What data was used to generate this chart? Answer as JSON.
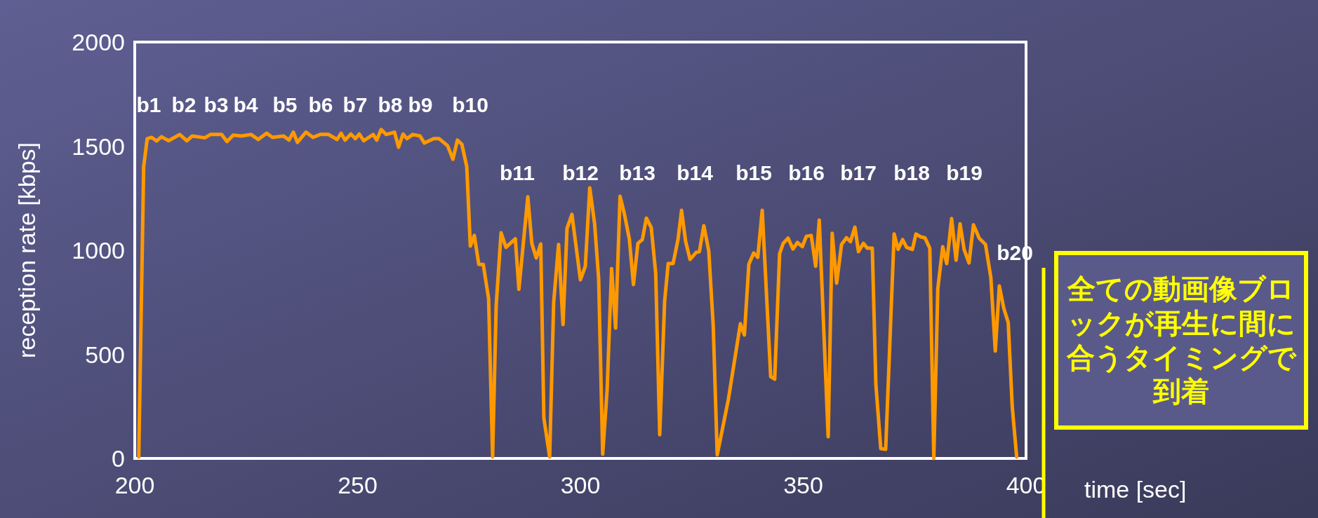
{
  "chart_data": {
    "type": "line",
    "xlabel": "time [sec]",
    "ylabel": "reception rate [kbps]",
    "xlim": [
      200,
      400
    ],
    "ylim": [
      0,
      2000
    ],
    "xticks": [
      200,
      250,
      300,
      350,
      400
    ],
    "yticks": [
      0,
      500,
      1000,
      1500,
      2000
    ],
    "grid": false,
    "series": [
      {
        "color": "#ff9900",
        "x": [
          200.9,
          202.0,
          202.8,
          203.8,
          204.9,
          206.0,
          207.6,
          210.1,
          211.7,
          212.9,
          215.7,
          217.0,
          219.5,
          220.7,
          222.1,
          223.9,
          226.1,
          227.7,
          229.6,
          230.9,
          233.4,
          234.6,
          235.6,
          236.5,
          238.4,
          240.0,
          241.6,
          243.5,
          245.4,
          246.3,
          247.2,
          248.5,
          249.5,
          250.4,
          251.4,
          253.5,
          254.3,
          255.3,
          256.4,
          258.3,
          259.2,
          260.2,
          261.1,
          262.4,
          264.0,
          265.0,
          267.1,
          268.3,
          270.2,
          271.4,
          272.4,
          273.4,
          274.5,
          275.3,
          276.2,
          277.2,
          278.2,
          279.4,
          280.3,
          281.1,
          282.2,
          283.3,
          285.4,
          286.2,
          288.2,
          289.1,
          290.1,
          291.1,
          291.8,
          293.1,
          294.0,
          295.1,
          296.1,
          297.0,
          298.1,
          300.0,
          301.1,
          302.1,
          303.2,
          304.1,
          305.0,
          306.0,
          307.0,
          307.9,
          308.9,
          309.9,
          311.0,
          311.9,
          312.9,
          313.9,
          314.8,
          315.9,
          316.9,
          317.8,
          318.9,
          319.7,
          320.8,
          321.9,
          322.7,
          323.6,
          324.6,
          326.0,
          326.7,
          327.7,
          328.8,
          329.8,
          330.7,
          333.2,
          335.9,
          336.8,
          337.8,
          338.9,
          339.8,
          340.8,
          342.7,
          343.6,
          344.7,
          345.5,
          346.6,
          347.7,
          348.7,
          349.8,
          350.7,
          351.8,
          352.8,
          353.6,
          355.6,
          356.5,
          357.5,
          358.6,
          359.7,
          360.6,
          361.6,
          362.4,
          363.5,
          364.4,
          365.5,
          366.3,
          367.4,
          368.5,
          370.4,
          371.3,
          372.3,
          373.2,
          374.5,
          375.3,
          376.4,
          377.3,
          378.4,
          379.3,
          380.2,
          381.3,
          382.2,
          383.3,
          384.3,
          385.2,
          386.1,
          387.2,
          388.2,
          389.5,
          390.9,
          392.1,
          393.1,
          394.0,
          395.0,
          396.0,
          396.9,
          397.9
        ],
        "values": [
          7,
          1401,
          1536,
          1542,
          1525,
          1545,
          1526,
          1556,
          1526,
          1549,
          1540,
          1556,
          1556,
          1522,
          1553,
          1549,
          1556,
          1532,
          1562,
          1542,
          1549,
          1529,
          1567,
          1518,
          1567,
          1542,
          1556,
          1556,
          1532,
          1562,
          1529,
          1558,
          1536,
          1558,
          1526,
          1556,
          1529,
          1580,
          1556,
          1567,
          1495,
          1558,
          1536,
          1556,
          1549,
          1515,
          1536,
          1536,
          1502,
          1437,
          1529,
          1509,
          1401,
          1020,
          1071,
          932,
          932,
          768,
          7,
          734,
          1084,
          1014,
          1055,
          812,
          1257,
          1033,
          963,
          1030,
          195,
          7,
          748,
          1028,
          643,
          1105,
          1172,
          858,
          923,
          1300,
          1125,
          862,
          20,
          330,
          912,
          626,
          1259,
          1172,
          1051,
          835,
          1033,
          1051,
          1154,
          1109,
          889,
          114,
          754,
          936,
          936,
          1051,
          1192,
          1044,
          956,
          990,
          993,
          1118,
          997,
          640,
          17,
          283,
          647,
          593,
          933,
          987,
          966,
          1192,
          393,
          381,
          983,
          1033,
          1058,
          1006,
          1037,
          1017,
          1067,
          1071,
          923,
          1145,
          104,
          1082,
          842,
          1028,
          1060,
          1041,
          1111,
          993,
          1033,
          1010,
          1010,
          357,
          47,
          44,
          1078,
          1004,
          1051,
          1014,
          1004,
          1078,
          1064,
          1060,
          1010,
          0,
          815,
          1017,
          936,
          1152,
          952,
          1127,
          1004,
          939,
          1122,
          1057,
          1028,
          869,
          516,
          828,
          721,
          653,
          249,
          7
        ]
      }
    ],
    "annotations": [
      "b1",
      "b2",
      "b3",
      "b4",
      "b5",
      "b6",
      "b7",
      "b8",
      "b9",
      "b10",
      "b11",
      "b12",
      "b13",
      "b14",
      "b15",
      "b16",
      "b17",
      "b18",
      "b19",
      "b20",
      "全ての動画像ブロックが再生に間に合うタイミングで到着"
    ]
  }
}
